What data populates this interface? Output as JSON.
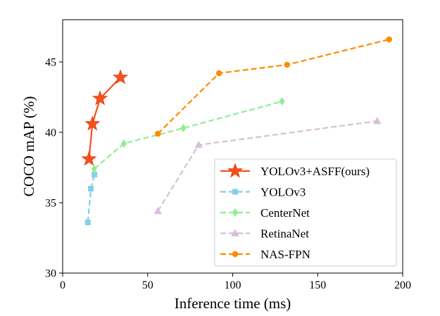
{
  "chart_data": {
    "type": "line",
    "title": "",
    "xlabel": "Inference time (ms)",
    "ylabel": "COCO mAP (%)",
    "xlim": [
      0,
      200
    ],
    "ylim": [
      30,
      48
    ],
    "xticks": [
      0,
      50,
      100,
      150,
      200
    ],
    "yticks": [
      30,
      35,
      40,
      45
    ],
    "x_tick_labels": [
      "0",
      "50",
      "100",
      "150",
      "200"
    ],
    "y_tick_labels": [
      "30",
      "35",
      "40",
      "45"
    ],
    "grid": false,
    "legend_position": "lower-right",
    "series": [
      {
        "name": "YOLOv3+ASFF(ours)",
        "color": "#f4511e",
        "marker": "star",
        "line": "solid",
        "points": [
          [
            15.5,
            38.1
          ],
          [
            17.5,
            40.6
          ],
          [
            22,
            42.4
          ],
          [
            34,
            43.9
          ]
        ]
      },
      {
        "name": "YOLOv3",
        "color": "#87ceeb",
        "marker": "square",
        "line": "dashed",
        "points": [
          [
            14.8,
            33.6
          ],
          [
            16.6,
            36.0
          ],
          [
            18.7,
            37.0
          ]
        ]
      },
      {
        "name": "CenterNet",
        "color": "#90ee90",
        "marker": "diamond",
        "line": "dashed",
        "points": [
          [
            18.5,
            37.4
          ],
          [
            36,
            39.2
          ],
          [
            71,
            40.3
          ],
          [
            129,
            42.2
          ]
        ]
      },
      {
        "name": "RetinaNet",
        "color": "#d8bfd8",
        "marker": "triangle",
        "line": "dashed",
        "points": [
          [
            56,
            34.4
          ],
          [
            80,
            39.1
          ],
          [
            185,
            40.8
          ]
        ]
      },
      {
        "name": "NAS-FPN",
        "color": "#ff8c00",
        "marker": "circle",
        "line": "dashed",
        "points": [
          [
            56,
            39.9
          ],
          [
            92,
            44.2
          ],
          [
            132,
            44.8
          ],
          [
            192,
            46.6
          ]
        ]
      }
    ]
  }
}
